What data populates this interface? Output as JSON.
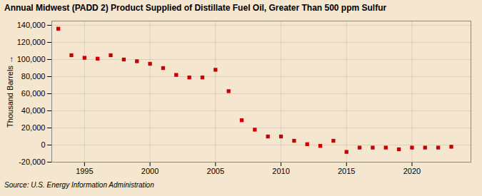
{
  "chart_data": {
    "type": "scatter",
    "title": "Annual Midwest (PADD 2) Product Supplied of Distillate Fuel Oil, Greater Than 500 ppm Sulfur",
    "ylabel": "Thousand Barrels",
    "source": "Source: U.S. Energy Information Administration",
    "x": [
      1993,
      1994,
      1995,
      1996,
      1997,
      1998,
      1999,
      2000,
      2001,
      2002,
      2003,
      2004,
      2005,
      2006,
      2007,
      2008,
      2009,
      2010,
      2011,
      2012,
      2013,
      2014,
      2015,
      2016,
      2017,
      2018,
      2019,
      2020,
      2021,
      2022,
      2023
    ],
    "values": [
      136000,
      105000,
      102000,
      101000,
      105000,
      100000,
      98000,
      95000,
      90000,
      82000,
      79000,
      79000,
      88000,
      63000,
      29000,
      18000,
      10000,
      10000,
      5000,
      1000,
      -1000,
      5000,
      -8000,
      -3000,
      -3000,
      -3000,
      -5000,
      -3000,
      -3000,
      -3000,
      -2000
    ],
    "color": "#cc0000",
    "marker": "square",
    "xlim": [
      1992.5,
      2024.5
    ],
    "xticks": [
      1995,
      2000,
      2005,
      2010,
      2015,
      2020
    ],
    "ylim": [
      -20000,
      145000
    ],
    "yticks": [
      {
        "value": -20000,
        "label": "-20,000"
      },
      0,
      {
        "value": 20000,
        "label": "20,000"
      },
      {
        "value": 40000,
        "label": "40,000"
      },
      {
        "value": 60000,
        "label": "60,000"
      },
      {
        "value": 80000,
        "label": "80,000"
      },
      {
        "value": 100000,
        "label": "100,000"
      },
      {
        "value": 120000,
        "label": "120,000"
      },
      {
        "value": 140000,
        "label": "140,000"
      }
    ],
    "grid": true
  }
}
